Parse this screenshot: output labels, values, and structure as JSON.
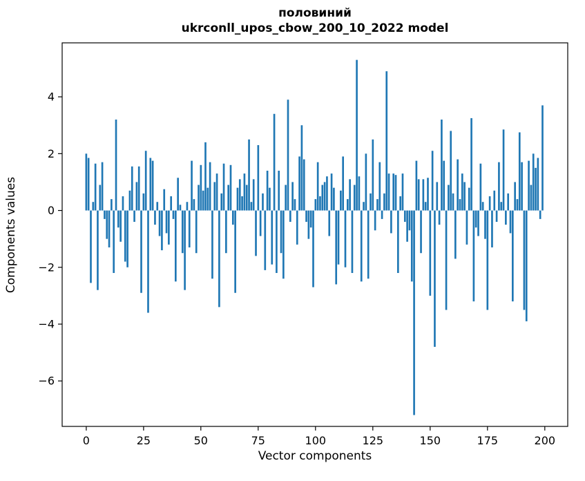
{
  "figure": {
    "background": "#ffffff",
    "frame_color": "#000000",
    "text_color": "#000000"
  },
  "chart_data": {
    "type": "bar",
    "title_line1": "половиний",
    "title_line2": "ukrconll_upos_cbow_200_10_2022 model",
    "xlabel": "Vector components",
    "ylabel": "Components values",
    "bar_color": "#1f77b4",
    "grid": false,
    "legend": null,
    "xlim": [
      -10.5,
      210.0
    ],
    "ylim": [
      -7.6,
      5.9
    ],
    "x_ticks": [
      0,
      25,
      50,
      75,
      100,
      125,
      150,
      175,
      200
    ],
    "y_ticks": [
      -6,
      -4,
      -2,
      0,
      2,
      4
    ],
    "x": "indices 0..199 (vector component index)",
    "values": [
      2.0,
      1.85,
      -2.55,
      0.3,
      1.65,
      -2.8,
      0.9,
      1.7,
      -0.3,
      -1.0,
      -1.3,
      0.4,
      -2.2,
      3.2,
      -0.6,
      -1.1,
      0.5,
      -1.8,
      -2.0,
      0.7,
      1.55,
      -0.4,
      1.0,
      1.55,
      -2.9,
      0.6,
      2.1,
      -3.6,
      1.85,
      1.75,
      -0.5,
      0.3,
      -0.9,
      -1.4,
      0.75,
      -0.8,
      -1.2,
      0.5,
      -0.3,
      -2.5,
      1.15,
      0.2,
      -1.5,
      -2.8,
      0.3,
      -1.3,
      1.75,
      0.4,
      -1.5,
      0.9,
      1.6,
      0.7,
      2.4,
      0.8,
      1.7,
      -2.4,
      1.0,
      1.3,
      -3.4,
      0.6,
      1.65,
      -1.5,
      0.9,
      1.6,
      -0.5,
      -2.9,
      0.8,
      1.1,
      0.5,
      1.3,
      0.9,
      2.5,
      0.3,
      1.1,
      -1.6,
      2.3,
      -0.9,
      0.6,
      -2.1,
      1.4,
      0.8,
      -1.9,
      3.4,
      -2.2,
      1.4,
      -1.5,
      -2.4,
      0.9,
      3.9,
      -0.4,
      1.0,
      0.4,
      -1.2,
      1.9,
      3.0,
      1.8,
      -0.4,
      -1.0,
      -0.6,
      -2.7,
      0.4,
      1.7,
      0.5,
      0.9,
      1.0,
      1.2,
      -0.9,
      1.3,
      0.8,
      -2.6,
      -1.9,
      0.7,
      1.9,
      -2.0,
      0.4,
      1.1,
      -2.2,
      0.9,
      5.3,
      1.2,
      -2.5,
      0.3,
      2.0,
      -2.4,
      0.6,
      2.5,
      -0.7,
      0.4,
      1.7,
      -0.3,
      0.6,
      4.9,
      1.3,
      -0.8,
      1.3,
      1.25,
      -2.2,
      0.5,
      1.3,
      -0.4,
      -1.1,
      -0.7,
      -2.5,
      -7.2,
      1.75,
      1.1,
      -1.5,
      1.1,
      0.3,
      1.15,
      -3.0,
      2.1,
      -4.8,
      1.0,
      -0.5,
      3.2,
      1.75,
      -3.5,
      0.9,
      2.8,
      0.6,
      -1.7,
      1.8,
      0.4,
      1.3,
      1.0,
      -1.2,
      0.8,
      3.25,
      -3.2,
      -0.6,
      -0.9,
      1.65,
      0.3,
      -1.0,
      -3.5,
      0.5,
      -1.3,
      0.7,
      -0.4,
      1.7,
      0.3,
      2.85,
      -0.5,
      0.6,
      -0.8,
      -3.2,
      1.0,
      0.4,
      2.75,
      1.7,
      -3.5,
      -3.9,
      1.75,
      0.9,
      2.0,
      1.5,
      1.85,
      -0.3,
      3.7
    ]
  }
}
